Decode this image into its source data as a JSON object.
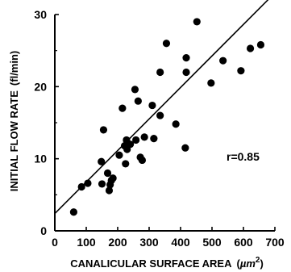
{
  "chart_data": {
    "type": "scatter",
    "xlabel": "CANALICULAR SURFACE AREA",
    "xunit_base": "µm",
    "xunit_exp": "2",
    "ylabel": "INITIAL FLOW RATE",
    "yunit": "(fl/min)",
    "xlim": [
      0,
      700
    ],
    "ylim": [
      0,
      30
    ],
    "xticks": [
      0,
      100,
      200,
      300,
      400,
      500,
      600,
      700
    ],
    "yticks": [
      0,
      10,
      20,
      30
    ],
    "grid": false,
    "legend": "none",
    "annotation": "r=0.85",
    "regression": {
      "x": [
        0,
        700
      ],
      "y": [
        2.4,
        33.0
      ]
    },
    "series": [
      {
        "points": [
          [
            60,
            2.6
          ],
          [
            85,
            6.1
          ],
          [
            105,
            6.6
          ],
          [
            148,
            9.6
          ],
          [
            150,
            6.5
          ],
          [
            155,
            14.0
          ],
          [
            168,
            8.0
          ],
          [
            173,
            5.6
          ],
          [
            176,
            6.4
          ],
          [
            180,
            7.0
          ],
          [
            185,
            7.3
          ],
          [
            205,
            10.5
          ],
          [
            215,
            17.0
          ],
          [
            222,
            11.8
          ],
          [
            225,
            9.3
          ],
          [
            228,
            12.6
          ],
          [
            230,
            11.3
          ],
          [
            240,
            12.0
          ],
          [
            255,
            19.6
          ],
          [
            258,
            12.6
          ],
          [
            265,
            18.0
          ],
          [
            272,
            10.2
          ],
          [
            278,
            9.8
          ],
          [
            285,
            13.0
          ],
          [
            310,
            17.4
          ],
          [
            315,
            12.8
          ],
          [
            335,
            16.0
          ],
          [
            335,
            22.0
          ],
          [
            355,
            26.0
          ],
          [
            385,
            14.8
          ],
          [
            415,
            11.5
          ],
          [
            418,
            24.0
          ],
          [
            418,
            22.0
          ],
          [
            452,
            29.0
          ],
          [
            497,
            20.5
          ],
          [
            535,
            23.6
          ],
          [
            592,
            22.2
          ],
          [
            622,
            25.3
          ],
          [
            655,
            25.8
          ]
        ]
      }
    ]
  }
}
